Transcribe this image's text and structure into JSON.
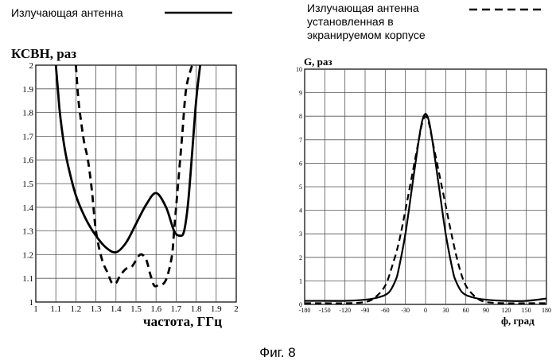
{
  "legend": [
    {
      "lines": [
        "Излучающая антенна"
      ],
      "style": "solid"
    },
    {
      "lines": [
        "Излучающая антенна",
        "установленная в",
        "экранируемом корпусе"
      ],
      "style": "dashed"
    }
  ],
  "caption": "Фиг. 8",
  "chart_data": [
    {
      "type": "line",
      "ylabel": "КСВН, раз",
      "xlabel": "частота, ГГц",
      "xlim": [
        1,
        2
      ],
      "ylim": [
        1,
        2
      ],
      "x_ticks": [
        "1",
        "1.1",
        "1.2",
        "1.3",
        "1.4",
        "1.5",
        "1.6",
        "1.7",
        "1.8",
        "1.9",
        "2"
      ],
      "y_ticks": [
        "1",
        "1.1",
        "1.2",
        "1.3",
        "1.4",
        "1.5",
        "1.6",
        "1.7",
        "1.8",
        "1.9",
        "2"
      ],
      "grid": true,
      "series": [
        {
          "style": "solid",
          "x": [
            1.1,
            1.11,
            1.12,
            1.14,
            1.16,
            1.2,
            1.25,
            1.3,
            1.35,
            1.4,
            1.45,
            1.5,
            1.55,
            1.6,
            1.65,
            1.69,
            1.72,
            1.74,
            1.76,
            1.78,
            1.8,
            1.82
          ],
          "y": [
            2.0,
            1.9,
            1.8,
            1.67,
            1.58,
            1.45,
            1.35,
            1.28,
            1.23,
            1.21,
            1.25,
            1.33,
            1.41,
            1.46,
            1.4,
            1.3,
            1.28,
            1.3,
            1.42,
            1.63,
            1.85,
            2.0
          ]
        },
        {
          "style": "dashed",
          "x": [
            1.2,
            1.21,
            1.22,
            1.24,
            1.26,
            1.28,
            1.3,
            1.33,
            1.36,
            1.38,
            1.4,
            1.42,
            1.45,
            1.48,
            1.52,
            1.55,
            1.57,
            1.59,
            1.61,
            1.64,
            1.66,
            1.68,
            1.69,
            1.71,
            1.73,
            1.75,
            1.78
          ],
          "y": [
            2.0,
            1.88,
            1.8,
            1.68,
            1.6,
            1.47,
            1.3,
            1.18,
            1.12,
            1.08,
            1.08,
            1.11,
            1.14,
            1.15,
            1.2,
            1.18,
            1.12,
            1.07,
            1.07,
            1.08,
            1.12,
            1.2,
            1.3,
            1.5,
            1.7,
            1.9,
            2.0
          ]
        }
      ]
    },
    {
      "type": "line",
      "ylabel": "G, раз",
      "xlabel": "ф, град",
      "xlim": [
        -180,
        180
      ],
      "ylim": [
        0,
        10
      ],
      "x_ticks": [
        "-180",
        "-150",
        "-120",
        "-90",
        "-60",
        "-30",
        "0",
        "30",
        "60",
        "90",
        "120",
        "150",
        "180"
      ],
      "y_ticks": [
        "0",
        "1",
        "2",
        "3",
        "4",
        "5",
        "6",
        "7",
        "8",
        "9",
        "10"
      ],
      "grid": true,
      "series": [
        {
          "style": "solid",
          "x": [
            -180,
            -150,
            -120,
            -90,
            -70,
            -55,
            -45,
            -40,
            -30,
            -20,
            -10,
            -5,
            0,
            5,
            10,
            20,
            30,
            40,
            45,
            55,
            70,
            90,
            120,
            150,
            180
          ],
          "y": [
            0.15,
            0.15,
            0.15,
            0.2,
            0.3,
            0.5,
            1.0,
            1.5,
            3.0,
            5.0,
            7.0,
            7.8,
            8.1,
            7.8,
            7.0,
            5.0,
            3.0,
            1.5,
            1.0,
            0.5,
            0.3,
            0.2,
            0.15,
            0.15,
            0.25
          ]
        },
        {
          "style": "dashed",
          "x": [
            -180,
            -150,
            -120,
            -90,
            -75,
            -60,
            -50,
            -40,
            -30,
            -20,
            -10,
            -5,
            0,
            5,
            10,
            20,
            30,
            40,
            50,
            60,
            75,
            90,
            120,
            150,
            180
          ],
          "y": [
            0.05,
            0.05,
            0.05,
            0.1,
            0.3,
            0.8,
            1.6,
            2.6,
            4.0,
            5.5,
            7.0,
            7.7,
            8.0,
            7.7,
            7.0,
            5.6,
            4.2,
            2.8,
            1.6,
            0.8,
            0.3,
            0.1,
            0.05,
            0.05,
            0.05
          ]
        }
      ]
    }
  ]
}
